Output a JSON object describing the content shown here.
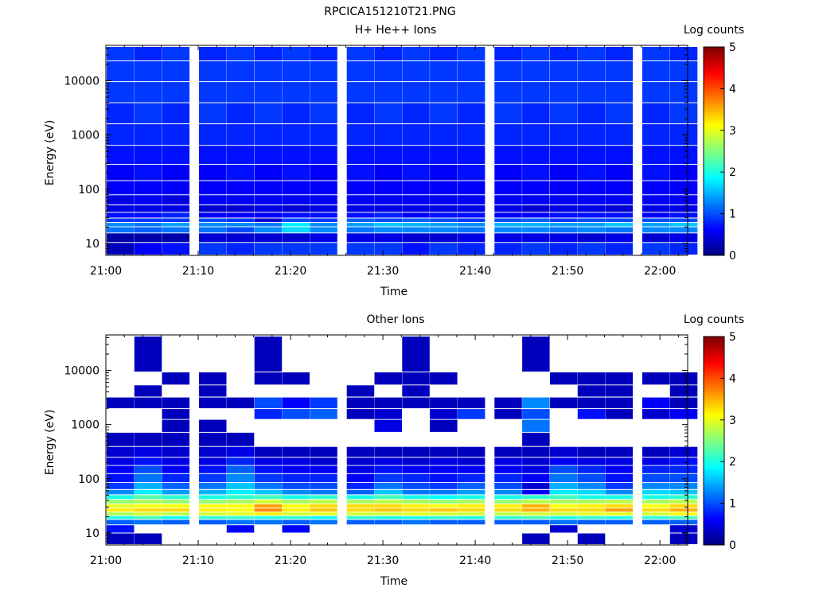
{
  "figure_title": "RPCICA151210T21.PNG",
  "colors": {
    "colormap": [
      "#00007f",
      "#0000ff",
      "#007fff",
      "#00ffff",
      "#7fff7f",
      "#ffff00",
      "#ff7f00",
      "#ff0000",
      "#7f0000"
    ]
  },
  "chart_data": [
    {
      "type": "heatmap",
      "title": "H+ He++ Ions",
      "xlabel": "Time",
      "ylabel": "Energy (eV)",
      "y_scale": "log",
      "x_range": [
        "21:00",
        "22:03"
      ],
      "ylim": [
        6,
        45000
      ],
      "x_tick_labels": [
        "21:00",
        "21:10",
        "21:20",
        "21:30",
        "21:40",
        "21:50",
        "22:00"
      ],
      "y_tick_labels": [
        "10",
        "100",
        "1000",
        "10000"
      ],
      "colorbar": {
        "label": "Log counts",
        "range": [
          0,
          5
        ],
        "tick_labels": [
          "0",
          "1",
          "2",
          "3",
          "4",
          "5"
        ]
      },
      "time_bins": [
        "21:00",
        "21:03",
        "21:06",
        "21:10",
        "21:13",
        "21:16",
        "21:19",
        "21:22",
        "21:26",
        "21:29",
        "21:32",
        "21:35",
        "21:38",
        "21:42",
        "21:45",
        "21:48",
        "21:51",
        "21:54",
        "21:58",
        "22:01"
      ],
      "energy_bands_eV": [
        8,
        13,
        18,
        22,
        26,
        32,
        42,
        60,
        100,
        200,
        400,
        1000,
        2500,
        6000,
        15000,
        35000
      ],
      "log_counts": [
        [
          0.3,
          0.6,
          0.7,
          0.9,
          0.8,
          0.9,
          0.9,
          0.9,
          0.9,
          0.9,
          0.7,
          0.9,
          0.8,
          0.8,
          0.9,
          0.8,
          0.9,
          0.8,
          0.9,
          0.8
        ],
        [
          0.2,
          0.2,
          0.2,
          0.4,
          0.4,
          0.4,
          0.4,
          0.5,
          0.5,
          0.5,
          0.4,
          0.4,
          0.5,
          0.5,
          0.5,
          0.5,
          0.4,
          0.5,
          0.4,
          0.5
        ],
        [
          1.2,
          1.1,
          1.2,
          1.2,
          1.0,
          1.3,
          1.7,
          1.3,
          1.2,
          1.3,
          1.3,
          1.3,
          1.2,
          1.3,
          1.3,
          1.2,
          1.3,
          1.2,
          1.3,
          1.3
        ],
        [
          1.3,
          1.2,
          1.4,
          1.3,
          1.3,
          1.2,
          1.8,
          1.3,
          1.4,
          1.6,
          1.5,
          1.4,
          1.3,
          1.5,
          1.5,
          1.4,
          1.4,
          1.6,
          1.4,
          1.6
        ],
        [
          0.9,
          0.9,
          0.9,
          1.0,
          0.9,
          0.4,
          1.0,
          0.9,
          1.1,
          1.0,
          1.1,
          1.0,
          0.9,
          1.0,
          1.1,
          0.9,
          1.0,
          1.0,
          1.0,
          1.0
        ],
        [
          0.7,
          0.7,
          0.8,
          0.6,
          0.6,
          0.6,
          0.7,
          0.7,
          0.7,
          0.8,
          0.6,
          0.7,
          0.7,
          0.6,
          0.6,
          0.7,
          0.7,
          0.7,
          0.6,
          0.7
        ],
        [
          0.5,
          0.5,
          0.5,
          0.4,
          0.4,
          0.5,
          0.4,
          0.5,
          0.5,
          0.5,
          0.5,
          0.5,
          0.5,
          0.5,
          0.4,
          0.5,
          0.5,
          0.4,
          0.5,
          0.5
        ],
        [
          0.5,
          0.6,
          0.5,
          0.6,
          0.6,
          0.6,
          0.6,
          0.6,
          0.6,
          0.6,
          0.6,
          0.6,
          0.6,
          0.6,
          0.6,
          0.6,
          0.6,
          0.6,
          0.6,
          0.6
        ],
        [
          0.6,
          0.6,
          0.6,
          0.6,
          0.6,
          0.6,
          0.6,
          0.6,
          0.6,
          0.6,
          0.6,
          0.6,
          0.6,
          0.6,
          0.6,
          0.6,
          0.6,
          0.6,
          0.6,
          0.6
        ],
        [
          0.6,
          0.7,
          0.6,
          0.6,
          0.7,
          0.6,
          0.7,
          0.6,
          0.7,
          0.6,
          0.7,
          0.6,
          0.7,
          0.6,
          0.7,
          0.6,
          0.7,
          0.6,
          0.7,
          0.6
        ],
        [
          0.7,
          0.7,
          0.7,
          0.7,
          0.7,
          0.7,
          0.7,
          0.7,
          0.7,
          0.7,
          0.7,
          0.7,
          0.7,
          0.7,
          0.7,
          0.7,
          0.7,
          0.7,
          0.7,
          0.7
        ],
        [
          0.8,
          0.8,
          0.8,
          0.8,
          0.8,
          0.8,
          0.8,
          0.8,
          0.8,
          0.8,
          0.8,
          0.8,
          0.8,
          0.8,
          0.8,
          0.8,
          0.8,
          0.8,
          0.8,
          0.8
        ],
        [
          0.8,
          0.9,
          0.8,
          0.9,
          0.8,
          0.9,
          0.8,
          0.9,
          0.8,
          0.9,
          0.8,
          0.9,
          0.8,
          0.9,
          0.8,
          0.9,
          0.8,
          0.9,
          0.8,
          0.9
        ],
        [
          0.9,
          0.9,
          0.9,
          0.9,
          0.9,
          0.9,
          0.9,
          0.9,
          0.9,
          0.9,
          0.9,
          0.9,
          0.9,
          0.9,
          0.9,
          0.9,
          0.9,
          0.9,
          0.9,
          0.9
        ],
        [
          0.9,
          0.9,
          0.9,
          0.9,
          0.9,
          0.9,
          0.9,
          0.9,
          0.9,
          0.9,
          0.9,
          0.9,
          0.9,
          0.9,
          0.9,
          0.9,
          0.9,
          0.9,
          0.9,
          0.9
        ],
        [
          0.9,
          0.8,
          0.9,
          0.8,
          0.9,
          0.8,
          0.9,
          0.8,
          0.9,
          0.8,
          0.9,
          0.8,
          0.9,
          0.8,
          0.9,
          0.8,
          0.9,
          0.8,
          0.9,
          0.8
        ]
      ]
    },
    {
      "type": "heatmap",
      "title": "Other Ions",
      "xlabel": "Time",
      "ylabel": "Energy (eV)",
      "y_scale": "log",
      "x_range": [
        "21:00",
        "22:03"
      ],
      "ylim": [
        6,
        45000
      ],
      "x_tick_labels": [
        "21:00",
        "21:10",
        "21:20",
        "21:30",
        "21:40",
        "21:50",
        "22:00"
      ],
      "y_tick_labels": [
        "10",
        "100",
        "1000",
        "10000"
      ],
      "colorbar": {
        "label": "Log counts",
        "range": [
          0,
          5
        ],
        "tick_labels": [
          "0",
          "1",
          "2",
          "3",
          "4",
          "5"
        ]
      },
      "time_bins": [
        "21:00",
        "21:03",
        "21:06",
        "21:10",
        "21:13",
        "21:16",
        "21:19",
        "21:22",
        "21:26",
        "21:29",
        "21:32",
        "21:35",
        "21:38",
        "21:42",
        "21:45",
        "21:48",
        "21:51",
        "21:54",
        "21:58",
        "22:01"
      ],
      "energy_bands_eV": [
        8,
        12,
        16,
        19,
        22,
        26,
        31,
        37,
        45,
        55,
        70,
        100,
        150,
        200,
        300,
        500,
        1000,
        1500,
        2500,
        4000,
        7000,
        12000
      ],
      "log_counts": [
        [
          0.3,
          0.3,
          0.0,
          0.0,
          0.0,
          0.0,
          0.0,
          0.0,
          0.0,
          0.0,
          0.0,
          0.0,
          0.0,
          0.0,
          0.3,
          0.0,
          0.3,
          0.0,
          0.0,
          0.3
        ],
        [
          0.7,
          0.0,
          0.0,
          0.0,
          0.6,
          0.0,
          0.6,
          0.0,
          0.0,
          0.0,
          0.0,
          0.0,
          0.0,
          0.0,
          0.0,
          0.4,
          0.0,
          0.0,
          0.0,
          0.4
        ],
        [
          1.1,
          1.2,
          1.1,
          1.1,
          1.2,
          1.2,
          1.1,
          1.2,
          1.1,
          1.1,
          1.2,
          1.1,
          1.1,
          1.1,
          1.1,
          1.2,
          1.1,
          1.1,
          1.1,
          1.1
        ],
        [
          2.0,
          2.2,
          1.9,
          2.1,
          2.1,
          2.0,
          2.1,
          1.9,
          2.1,
          2.0,
          2.0,
          2.1,
          2.0,
          2.1,
          2.2,
          2.0,
          2.1,
          2.0,
          2.1,
          2.2
        ],
        [
          2.7,
          2.9,
          2.8,
          2.9,
          3.0,
          3.2,
          2.9,
          3.0,
          2.9,
          2.9,
          3.0,
          2.9,
          2.9,
          2.8,
          2.9,
          2.9,
          3.0,
          3.0,
          2.9,
          3.1
        ],
        [
          3.2,
          3.3,
          3.3,
          3.2,
          3.1,
          3.7,
          3.2,
          3.4,
          3.3,
          3.4,
          3.3,
          3.4,
          3.3,
          3.3,
          3.5,
          3.3,
          3.3,
          3.6,
          3.3,
          3.5
        ],
        [
          3.0,
          3.1,
          3.1,
          3.1,
          3.1,
          3.6,
          3.1,
          3.3,
          3.3,
          3.3,
          3.2,
          3.1,
          3.2,
          3.2,
          3.5,
          3.1,
          3.2,
          3.3,
          3.1,
          3.3
        ],
        [
          2.6,
          2.7,
          2.6,
          2.6,
          2.7,
          2.9,
          2.7,
          2.8,
          2.7,
          2.8,
          2.7,
          2.6,
          2.7,
          2.6,
          2.8,
          2.7,
          2.7,
          2.8,
          2.7,
          2.8
        ],
        [
          2.0,
          2.3,
          2.1,
          2.0,
          2.1,
          2.2,
          2.0,
          2.1,
          2.0,
          2.2,
          2.0,
          1.9,
          2.0,
          2.0,
          2.1,
          2.2,
          2.0,
          2.0,
          2.0,
          2.1
        ],
        [
          1.3,
          1.8,
          1.4,
          1.5,
          1.8,
          1.6,
          1.3,
          1.2,
          1.1,
          1.6,
          1.2,
          1.2,
          1.4,
          1.3,
          0.6,
          1.8,
          1.7,
          1.3,
          1.7,
          1.6
        ],
        [
          0.9,
          1.5,
          1.1,
          1.2,
          1.6,
          1.2,
          1.0,
          1.0,
          0.8,
          1.2,
          1.0,
          0.9,
          1.1,
          1.0,
          0.4,
          1.5,
          1.3,
          0.9,
          1.3,
          1.3
        ],
        [
          0.7,
          1.2,
          0.8,
          0.9,
          1.3,
          0.9,
          0.8,
          0.8,
          0.6,
          0.9,
          0.8,
          0.7,
          0.8,
          0.8,
          0.6,
          1.2,
          1.0,
          0.7,
          1.0,
          1.0
        ],
        [
          0.6,
          1.0,
          0.6,
          0.7,
          1.1,
          0.7,
          0.6,
          0.6,
          0.5,
          0.7,
          0.6,
          0.6,
          0.6,
          0.6,
          0.5,
          1.0,
          0.8,
          0.6,
          0.8,
          0.8
        ],
        [
          0.5,
          0.7,
          0.5,
          0.5,
          0.8,
          0.5,
          0.5,
          0.4,
          0.4,
          0.5,
          0.4,
          0.5,
          0.4,
          0.5,
          0.4,
          0.6,
          0.5,
          0.5,
          0.5,
          0.7
        ],
        [
          0.4,
          0.5,
          0.4,
          0.4,
          0.5,
          0.3,
          0.3,
          0.3,
          0.3,
          0.3,
          0.3,
          0.3,
          0.3,
          0.3,
          0.3,
          0.4,
          0.3,
          0.3,
          0.3,
          0.4
        ],
        [
          0.3,
          0.3,
          0.3,
          0.3,
          0.3,
          0.0,
          0.0,
          0.0,
          0.0,
          0.0,
          0.0,
          0.0,
          0.0,
          0.0,
          0.3,
          0.0,
          0.0,
          0.0,
          0.0,
          0.0
        ],
        [
          0.0,
          0.0,
          0.3,
          0.3,
          0.0,
          0.0,
          0.0,
          0.0,
          0.0,
          0.5,
          0.0,
          0.3,
          0.0,
          0.0,
          1.2,
          0.0,
          0.0,
          0.0,
          0.0,
          0.0
        ],
        [
          0.0,
          0.0,
          0.3,
          0.0,
          0.0,
          0.8,
          1.0,
          1.1,
          0.3,
          0.4,
          0.0,
          0.4,
          0.9,
          0.3,
          1.0,
          0.0,
          0.7,
          0.3,
          0.4,
          0.6
        ],
        [
          0.3,
          0.3,
          0.3,
          0.3,
          0.3,
          1.0,
          0.6,
          0.9,
          0.3,
          0.3,
          0.3,
          0.3,
          0.3,
          0.3,
          1.3,
          0.3,
          0.3,
          0.3,
          0.6,
          0.3
        ],
        [
          0.0,
          0.3,
          0.0,
          0.3,
          0.0,
          0.0,
          0.0,
          0.0,
          0.3,
          0.0,
          0.3,
          0.0,
          0.0,
          0.0,
          0.0,
          0.0,
          0.3,
          0.3,
          0.0,
          0.3
        ],
        [
          0.0,
          0.0,
          0.3,
          0.3,
          0.0,
          0.3,
          0.3,
          0.0,
          0.0,
          0.3,
          0.3,
          0.3,
          0.0,
          0.0,
          0.0,
          0.3,
          0.3,
          0.3,
          0.3,
          0.3
        ],
        [
          0.0,
          0.3,
          0.0,
          0.0,
          0.0,
          0.3,
          0.0,
          0.0,
          0.0,
          0.0,
          0.3,
          0.0,
          0.0,
          0.0,
          0.3,
          0.0,
          0.0,
          0.0,
          0.0,
          0.0
        ]
      ]
    }
  ]
}
